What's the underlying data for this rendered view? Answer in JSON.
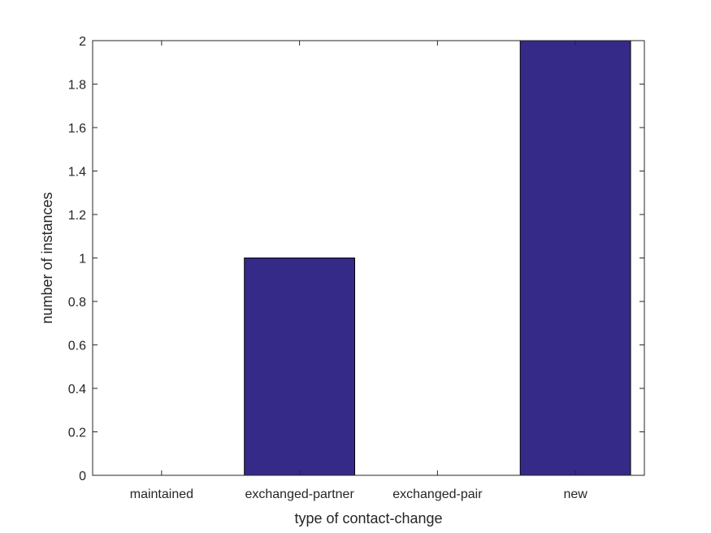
{
  "chart_data": {
    "type": "bar",
    "categories": [
      "maintained",
      "exchanged-partner",
      "exchanged-pair",
      "new"
    ],
    "values": [
      0,
      1,
      0,
      2
    ],
    "title": "",
    "xlabel": "type of contact-change",
    "ylabel": "number of instances",
    "ylim": [
      0,
      2
    ],
    "yticks": [
      "0",
      "0.2",
      "0.4",
      "0.6",
      "0.8",
      "1",
      "1.2",
      "1.4",
      "1.6",
      "1.8",
      "2"
    ],
    "grid": false,
    "bar_color": "#352a87",
    "edge_color": "#000000"
  }
}
